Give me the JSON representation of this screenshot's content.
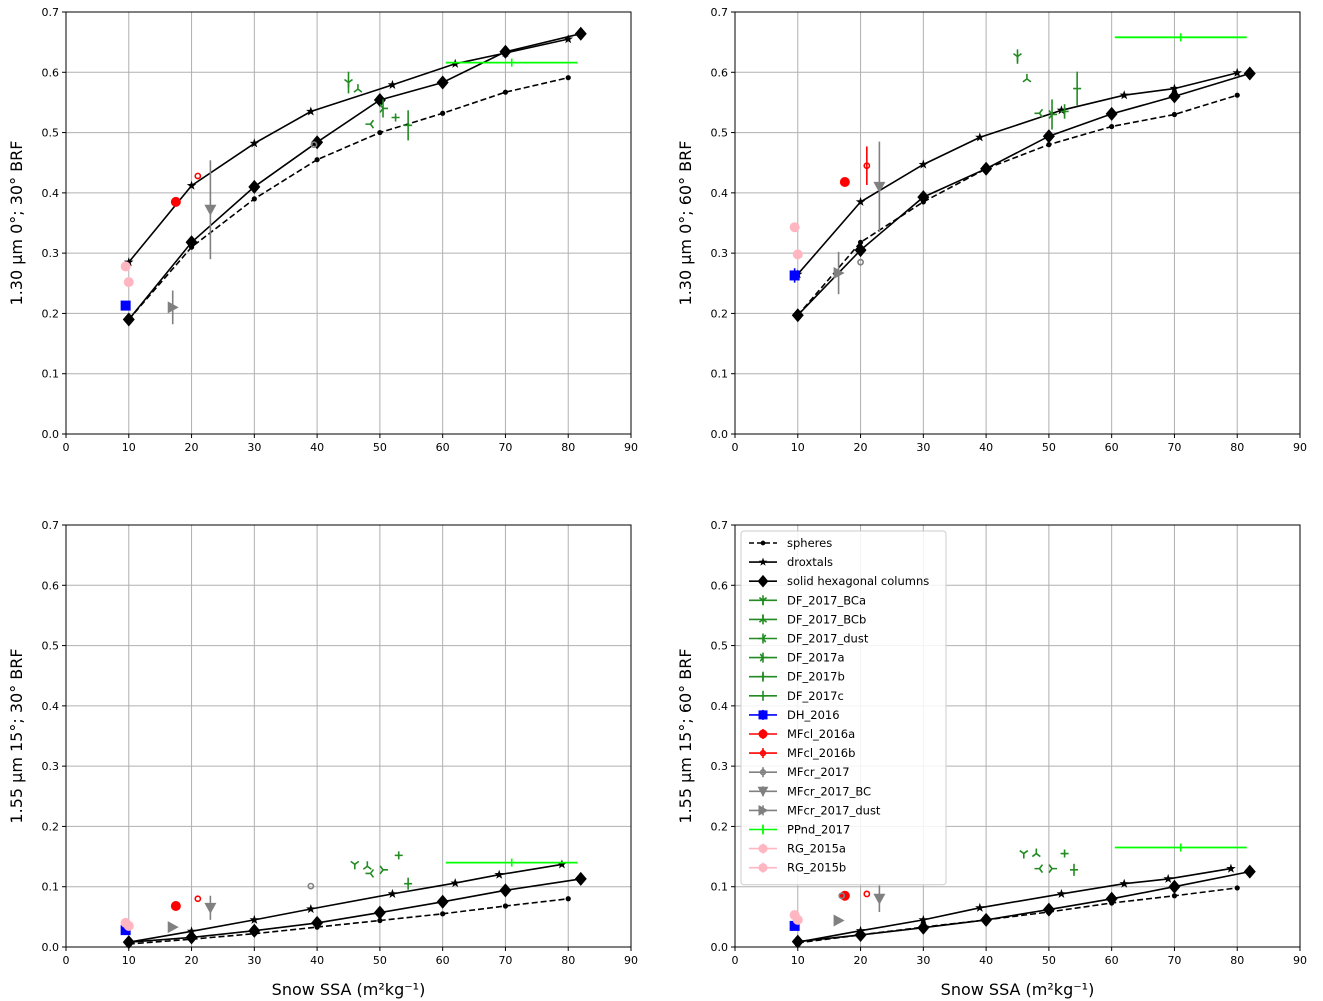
{
  "chart_data": [
    {
      "type": "line",
      "ylabel": "1.30 µm 0°; 30° BRF",
      "xlabel": "",
      "xlim": [
        0,
        90
      ],
      "ylim": [
        0,
        0.7
      ],
      "xticks": [
        "0",
        "10",
        "20",
        "30",
        "40",
        "50",
        "60",
        "70",
        "80",
        "90"
      ],
      "yticks": [
        "0.0",
        "0.1",
        "0.2",
        "0.3",
        "0.4",
        "0.5",
        "0.6",
        "0.7"
      ],
      "grid": true,
      "models": [
        {
          "name": "spheres",
          "x": [
            10,
            20,
            30,
            40,
            50,
            60,
            70,
            80
          ],
          "y": [
            0.19,
            0.31,
            0.39,
            0.455,
            0.5,
            0.532,
            0.567,
            0.591
          ]
        },
        {
          "name": "droxtals",
          "x": [
            10,
            20,
            30,
            39,
            52,
            62,
            70,
            80
          ],
          "y": [
            0.285,
            0.412,
            0.482,
            0.535,
            0.579,
            0.614,
            0.632,
            0.655
          ]
        },
        {
          "name": "solid hexagonal columns",
          "x": [
            10,
            20,
            30,
            40,
            50,
            60,
            70,
            82
          ],
          "y": [
            0.19,
            0.318,
            0.41,
            0.484,
            0.554,
            0.583,
            0.634,
            0.664
          ]
        }
      ],
      "observations": [
        {
          "name": "DF_2017_BCa",
          "x": 45,
          "y": 0.583,
          "yerr": 0.018
        },
        {
          "name": "DF_2017_BCb",
          "x": 46.5,
          "y": 0.572,
          "yerr": 0.0
        },
        {
          "name": "DF_2017_dust",
          "x": 48.5,
          "y": 0.514,
          "yerr": 0.0
        },
        {
          "name": "DF_2017a",
          "x": 50.5,
          "y": 0.54,
          "yerr": 0.015
        },
        {
          "name": "DF_2017b",
          "x": 52.5,
          "y": 0.525,
          "yerr": 0.0
        },
        {
          "name": "DF_2017c",
          "x": 54.5,
          "y": 0.512,
          "yerr": 0.025
        },
        {
          "name": "DH_2016",
          "x": 9.5,
          "y": 0.213,
          "yerr": 0.0
        },
        {
          "name": "MFcl_2016a",
          "x": 17.5,
          "y": 0.385,
          "yerr": 0.0
        },
        {
          "name": "MFcl_2016b",
          "x": 21,
          "y": 0.428,
          "yerr": 0.0
        },
        {
          "name": "MFcr_2017",
          "x": 39.5,
          "y": 0.48,
          "yerr": 0.0
        },
        {
          "name": "MFcr_2017_BC",
          "x": 23,
          "y": 0.372,
          "yerr": 0.082
        },
        {
          "name": "MFcr_2017_dust",
          "x": 17,
          "y": 0.21,
          "yerr": 0.028
        },
        {
          "name": "PPnd_2017",
          "x": 71,
          "y": 0.616,
          "xerr": 10.5
        },
        {
          "name": "RG_2015a",
          "x": 9.5,
          "y": 0.278,
          "yerr": 0.0
        },
        {
          "name": "RG_2015b",
          "x": 10,
          "y": 0.252,
          "yerr": 0.0
        }
      ]
    },
    {
      "type": "line",
      "ylabel": "1.30 µm 0°; 60° BRF",
      "xlabel": "",
      "xlim": [
        0,
        90
      ],
      "ylim": [
        0,
        0.7
      ],
      "xticks": [
        "0",
        "10",
        "20",
        "30",
        "40",
        "50",
        "60",
        "70",
        "80",
        "90"
      ],
      "yticks": [
        "0.0",
        "0.1",
        "0.2",
        "0.3",
        "0.4",
        "0.5",
        "0.6",
        "0.7"
      ],
      "grid": true,
      "models": [
        {
          "name": "spheres",
          "x": [
            10,
            20,
            30,
            40,
            50,
            60,
            70,
            80
          ],
          "y": [
            0.197,
            0.318,
            0.385,
            0.44,
            0.48,
            0.51,
            0.53,
            0.562
          ]
        },
        {
          "name": "droxtals",
          "x": [
            10,
            20,
            30,
            39,
            52,
            62,
            70,
            80
          ],
          "y": [
            0.265,
            0.385,
            0.447,
            0.492,
            0.537,
            0.562,
            0.573,
            0.599
          ]
        },
        {
          "name": "solid hexagonal columns",
          "x": [
            10,
            20,
            30,
            40,
            50,
            60,
            70,
            82
          ],
          "y": [
            0.197,
            0.305,
            0.393,
            0.44,
            0.494,
            0.531,
            0.56,
            0.598
          ]
        }
      ],
      "observations": [
        {
          "name": "DF_2017_BCa",
          "x": 45,
          "y": 0.626,
          "yerr": 0.012
        },
        {
          "name": "DF_2017_BCb",
          "x": 46.5,
          "y": 0.589,
          "yerr": 0.0
        },
        {
          "name": "DF_2017_dust",
          "x": 48.5,
          "y": 0.532,
          "yerr": 0.0
        },
        {
          "name": "DF_2017a",
          "x": 50.5,
          "y": 0.53,
          "yerr": 0.025
        },
        {
          "name": "DF_2017b",
          "x": 52.5,
          "y": 0.535,
          "yerr": 0.012
        },
        {
          "name": "DF_2017c",
          "x": 54.5,
          "y": 0.573,
          "yerr": 0.028
        },
        {
          "name": "DH_2016",
          "x": 9.5,
          "y": 0.263,
          "yerr": 0.012
        },
        {
          "name": "MFcl_2016a",
          "x": 17.5,
          "y": 0.418,
          "yerr": 0.0
        },
        {
          "name": "MFcl_2016b",
          "x": 21,
          "y": 0.445,
          "yerr": 0.032
        },
        {
          "name": "MFcr_2017",
          "x": 20,
          "y": 0.285,
          "yerr": 0.0
        },
        {
          "name": "MFcr_2017_BC",
          "x": 23,
          "y": 0.41,
          "yerr": 0.075
        },
        {
          "name": "MFcr_2017_dust",
          "x": 16.5,
          "y": 0.267,
          "yerr": 0.035
        },
        {
          "name": "PPnd_2017",
          "x": 71,
          "y": 0.658,
          "xerr": 10.5
        },
        {
          "name": "RG_2015a",
          "x": 9.5,
          "y": 0.343,
          "yerr": 0.0
        },
        {
          "name": "RG_2015b",
          "x": 10,
          "y": 0.298,
          "yerr": 0.0
        }
      ]
    },
    {
      "type": "line",
      "ylabel": "1.55 µm 15°; 30° BRF",
      "xlabel": "Snow SSA (m²kg⁻¹)",
      "xlim": [
        0,
        90
      ],
      "ylim": [
        0,
        0.7
      ],
      "xticks": [
        "0",
        "10",
        "20",
        "30",
        "40",
        "50",
        "60",
        "70",
        "80",
        "90"
      ],
      "yticks": [
        "0.0",
        "0.1",
        "0.2",
        "0.3",
        "0.4",
        "0.5",
        "0.6",
        "0.7"
      ],
      "grid": true,
      "models": [
        {
          "name": "spheres",
          "x": [
            10,
            20,
            30,
            40,
            50,
            60,
            70,
            80
          ],
          "y": [
            0.005,
            0.013,
            0.022,
            0.033,
            0.044,
            0.055,
            0.068,
            0.08
          ]
        },
        {
          "name": "droxtals",
          "x": [
            10,
            20,
            30,
            39,
            52,
            62,
            69,
            79
          ],
          "y": [
            0.008,
            0.026,
            0.045,
            0.063,
            0.088,
            0.106,
            0.12,
            0.137
          ]
        },
        {
          "name": "solid hexagonal columns",
          "x": [
            10,
            20,
            30,
            40,
            50,
            60,
            70,
            82
          ],
          "y": [
            0.008,
            0.016,
            0.027,
            0.04,
            0.057,
            0.075,
            0.094,
            0.113
          ]
        }
      ],
      "observations": [
        {
          "name": "DF_2017_BCa",
          "x": 46,
          "y": 0.137,
          "yerr": 0.0
        },
        {
          "name": "DF_2017_BCb",
          "x": 48,
          "y": 0.134,
          "yerr": 0.0
        },
        {
          "name": "DF_2017_dust",
          "x": 48.5,
          "y": 0.122,
          "yerr": 0.0
        },
        {
          "name": "DF_2017a",
          "x": 50.5,
          "y": 0.128,
          "yerr": 0.0
        },
        {
          "name": "DF_2017b",
          "x": 53,
          "y": 0.152,
          "yerr": 0.0
        },
        {
          "name": "DF_2017c",
          "x": 54.5,
          "y": 0.105,
          "yerr": 0.01
        },
        {
          "name": "DH_2016",
          "x": 9.5,
          "y": 0.028,
          "yerr": 0.0
        },
        {
          "name": "MFcl_2016a",
          "x": 17.5,
          "y": 0.068,
          "yerr": 0.0
        },
        {
          "name": "MFcl_2016b",
          "x": 21,
          "y": 0.08,
          "yerr": 0.0
        },
        {
          "name": "MFcr_2017",
          "x": 39,
          "y": 0.101,
          "yerr": 0.0
        },
        {
          "name": "MFcr_2017_BC",
          "x": 23,
          "y": 0.065,
          "yerr": 0.02
        },
        {
          "name": "MFcr_2017_dust",
          "x": 17,
          "y": 0.033,
          "yerr": 0.0
        },
        {
          "name": "PPnd_2017",
          "x": 71,
          "y": 0.14,
          "xerr": 10.5
        },
        {
          "name": "RG_2015a",
          "x": 9.5,
          "y": 0.04,
          "yerr": 0.0
        },
        {
          "name": "RG_2015b",
          "x": 10,
          "y": 0.035,
          "yerr": 0.0
        }
      ]
    },
    {
      "type": "line",
      "ylabel": "1.55 µm 15°; 60° BRF",
      "xlabel": "Snow SSA (m²kg⁻¹)",
      "xlim": [
        0,
        90
      ],
      "ylim": [
        0,
        0.7
      ],
      "xticks": [
        "0",
        "10",
        "20",
        "30",
        "40",
        "50",
        "60",
        "70",
        "80",
        "90"
      ],
      "yticks": [
        "0.0",
        "0.1",
        "0.2",
        "0.3",
        "0.4",
        "0.5",
        "0.6",
        "0.7"
      ],
      "grid": true,
      "legend_position": "top-left",
      "models": [
        {
          "name": "spheres",
          "x": [
            10,
            20,
            30,
            40,
            50,
            60,
            70,
            80
          ],
          "y": [
            0.007,
            0.02,
            0.033,
            0.045,
            0.058,
            0.073,
            0.085,
            0.098
          ]
        },
        {
          "name": "droxtals",
          "x": [
            10,
            20,
            30,
            39,
            52,
            62,
            69,
            79
          ],
          "y": [
            0.008,
            0.027,
            0.045,
            0.065,
            0.088,
            0.105,
            0.113,
            0.13
          ]
        },
        {
          "name": "solid hexagonal columns",
          "x": [
            10,
            20,
            30,
            40,
            50,
            60,
            70,
            82
          ],
          "y": [
            0.009,
            0.02,
            0.032,
            0.045,
            0.062,
            0.08,
            0.1,
            0.125
          ]
        }
      ],
      "observations": [
        {
          "name": "DF_2017_BCa",
          "x": 46,
          "y": 0.155,
          "yerr": 0.0
        },
        {
          "name": "DF_2017_BCb",
          "x": 48,
          "y": 0.155,
          "yerr": 0.0
        },
        {
          "name": "DF_2017_dust",
          "x": 48.5,
          "y": 0.13,
          "yerr": 0.0
        },
        {
          "name": "DF_2017a",
          "x": 50.5,
          "y": 0.13,
          "yerr": 0.0
        },
        {
          "name": "DF_2017b",
          "x": 52.5,
          "y": 0.155,
          "yerr": 0.0
        },
        {
          "name": "DF_2017c",
          "x": 54,
          "y": 0.128,
          "yerr": 0.01
        },
        {
          "name": "DH_2016",
          "x": 9.5,
          "y": 0.035,
          "yerr": 0.0
        },
        {
          "name": "MFcl_2016a",
          "x": 17.5,
          "y": 0.085,
          "yerr": 0.0
        },
        {
          "name": "MFcl_2016b",
          "x": 21,
          "y": 0.088,
          "yerr": 0.0
        },
        {
          "name": "MFcr_2017",
          "x": 17,
          "y": 0.085,
          "yerr": 0.0
        },
        {
          "name": "MFcr_2017_BC",
          "x": 23,
          "y": 0.08,
          "yerr": 0.022
        },
        {
          "name": "MFcr_2017_dust",
          "x": 16.5,
          "y": 0.044,
          "yerr": 0.0
        },
        {
          "name": "PPnd_2017",
          "x": 71,
          "y": 0.165,
          "xerr": 10.5
        },
        {
          "name": "RG_2015a",
          "x": 9.5,
          "y": 0.053,
          "yerr": 0.0
        },
        {
          "name": "RG_2015b",
          "x": 10,
          "y": 0.045,
          "yerr": 0.0
        }
      ]
    }
  ],
  "legend": [
    {
      "name": "spheres",
      "kind": "model",
      "dash": true,
      "marker": "dot",
      "color": "#000000"
    },
    {
      "name": "droxtals",
      "kind": "model",
      "dash": false,
      "marker": "star",
      "color": "#000000"
    },
    {
      "name": "solid hexagonal columns",
      "kind": "model",
      "dash": false,
      "marker": "diamond",
      "color": "#000000"
    },
    {
      "name": "DF_2017_BCa",
      "kind": "obs",
      "marker": "tri_down",
      "color": "#228b22"
    },
    {
      "name": "DF_2017_BCb",
      "kind": "obs",
      "marker": "tri_up",
      "color": "#228b22"
    },
    {
      "name": "DF_2017_dust",
      "kind": "obs",
      "marker": "tri_left",
      "color": "#228b22"
    },
    {
      "name": "DF_2017a",
      "kind": "obs",
      "marker": "tri_right",
      "color": "#228b22"
    },
    {
      "name": "DF_2017b",
      "kind": "obs",
      "marker": "plus",
      "color": "#228b22"
    },
    {
      "name": "DF_2017c",
      "kind": "obs",
      "marker": "tick",
      "color": "#228b22"
    },
    {
      "name": "DH_2016",
      "kind": "obs",
      "marker": "square",
      "color": "#0000ff"
    },
    {
      "name": "MFcl_2016a",
      "kind": "obs",
      "marker": "circle",
      "color": "#ff0000"
    },
    {
      "name": "MFcl_2016b",
      "kind": "obs",
      "marker": "ring",
      "color": "#ff0000"
    },
    {
      "name": "MFcr_2017",
      "kind": "obs",
      "marker": "ring",
      "color": "#808080"
    },
    {
      "name": "MFcr_2017_BC",
      "kind": "obs",
      "marker": "triangle_down",
      "color": "#808080"
    },
    {
      "name": "MFcr_2017_dust",
      "kind": "obs",
      "marker": "triangle_right",
      "color": "#808080"
    },
    {
      "name": "PPnd_2017",
      "kind": "obs",
      "marker": "vtick",
      "color": "#00ff00"
    },
    {
      "name": "RG_2015a",
      "kind": "obs",
      "marker": "circle",
      "color": "#ffb6c1"
    },
    {
      "name": "RG_2015b",
      "kind": "obs",
      "marker": "circle",
      "color": "#ffb6c1"
    }
  ],
  "legend_position": "top-left"
}
